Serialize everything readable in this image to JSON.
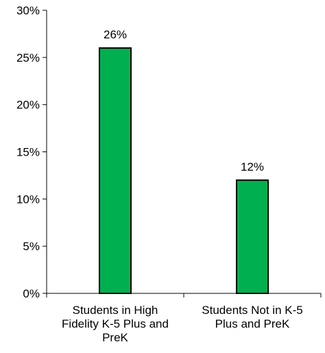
{
  "chart_data": {
    "type": "bar",
    "categories": [
      "Students in High Fidelity K-5 Plus and PreK",
      "Students Not in K-5 Plus and PreK"
    ],
    "category_lines": [
      [
        "Students in High",
        "Fidelity K-5 Plus and",
        "PreK"
      ],
      [
        "Students Not in K-5",
        "Plus and PreK"
      ]
    ],
    "values": [
      26,
      12
    ],
    "data_labels": [
      "26%",
      "12%"
    ],
    "yticks": [
      0,
      5,
      10,
      15,
      20,
      25,
      30
    ],
    "ytick_labels": [
      "0%",
      "5%",
      "10%",
      "15%",
      "20%",
      "25%",
      "30%"
    ],
    "ylim": [
      0,
      30
    ],
    "title": "",
    "xlabel": "",
    "ylabel": "",
    "grid": false,
    "legend": "none",
    "bar_color": "#00b050",
    "bar_edge_color": "#000000"
  }
}
